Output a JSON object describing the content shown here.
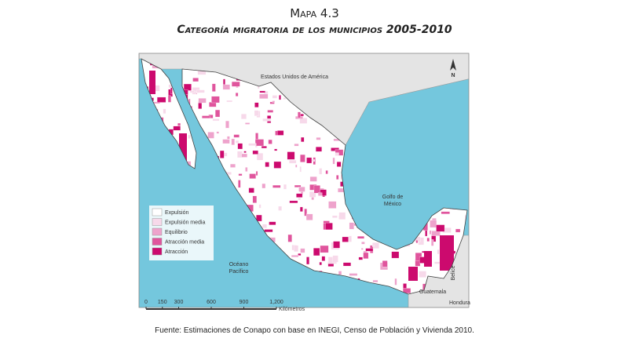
{
  "header": {
    "label": "Mapa 4.3",
    "title": "Categoría migratoria de los municipios 2005-2010"
  },
  "map": {
    "labels": {
      "usa": "Estados Unidos de América",
      "north": "N",
      "gulf": [
        "Golfo de",
        "México"
      ],
      "ocean": [
        "Océano",
        "Pacífico"
      ],
      "belize": "Belice",
      "guatemala": "Guatemala",
      "honduras": "Hondura"
    },
    "legend": [
      {
        "label": "Expulsión",
        "color": "#ffffff"
      },
      {
        "label": "Expulsión media",
        "color": "#f7d9ea"
      },
      {
        "label": "Equilibrio",
        "color": "#eea3cc"
      },
      {
        "label": "Atracción media",
        "color": "#e0559d"
      },
      {
        "label": "Atracción",
        "color": "#cc0a6e"
      }
    ],
    "scale": {
      "ticks": [
        0,
        150,
        300,
        600,
        900,
        {
          "value": 1200,
          "label": "1,200"
        }
      ],
      "unit": "Kilómetros"
    }
  },
  "source": "Fuente: Estimaciones de Conapo con base en INEGI, Censo de Población y Vivienda 2010."
}
